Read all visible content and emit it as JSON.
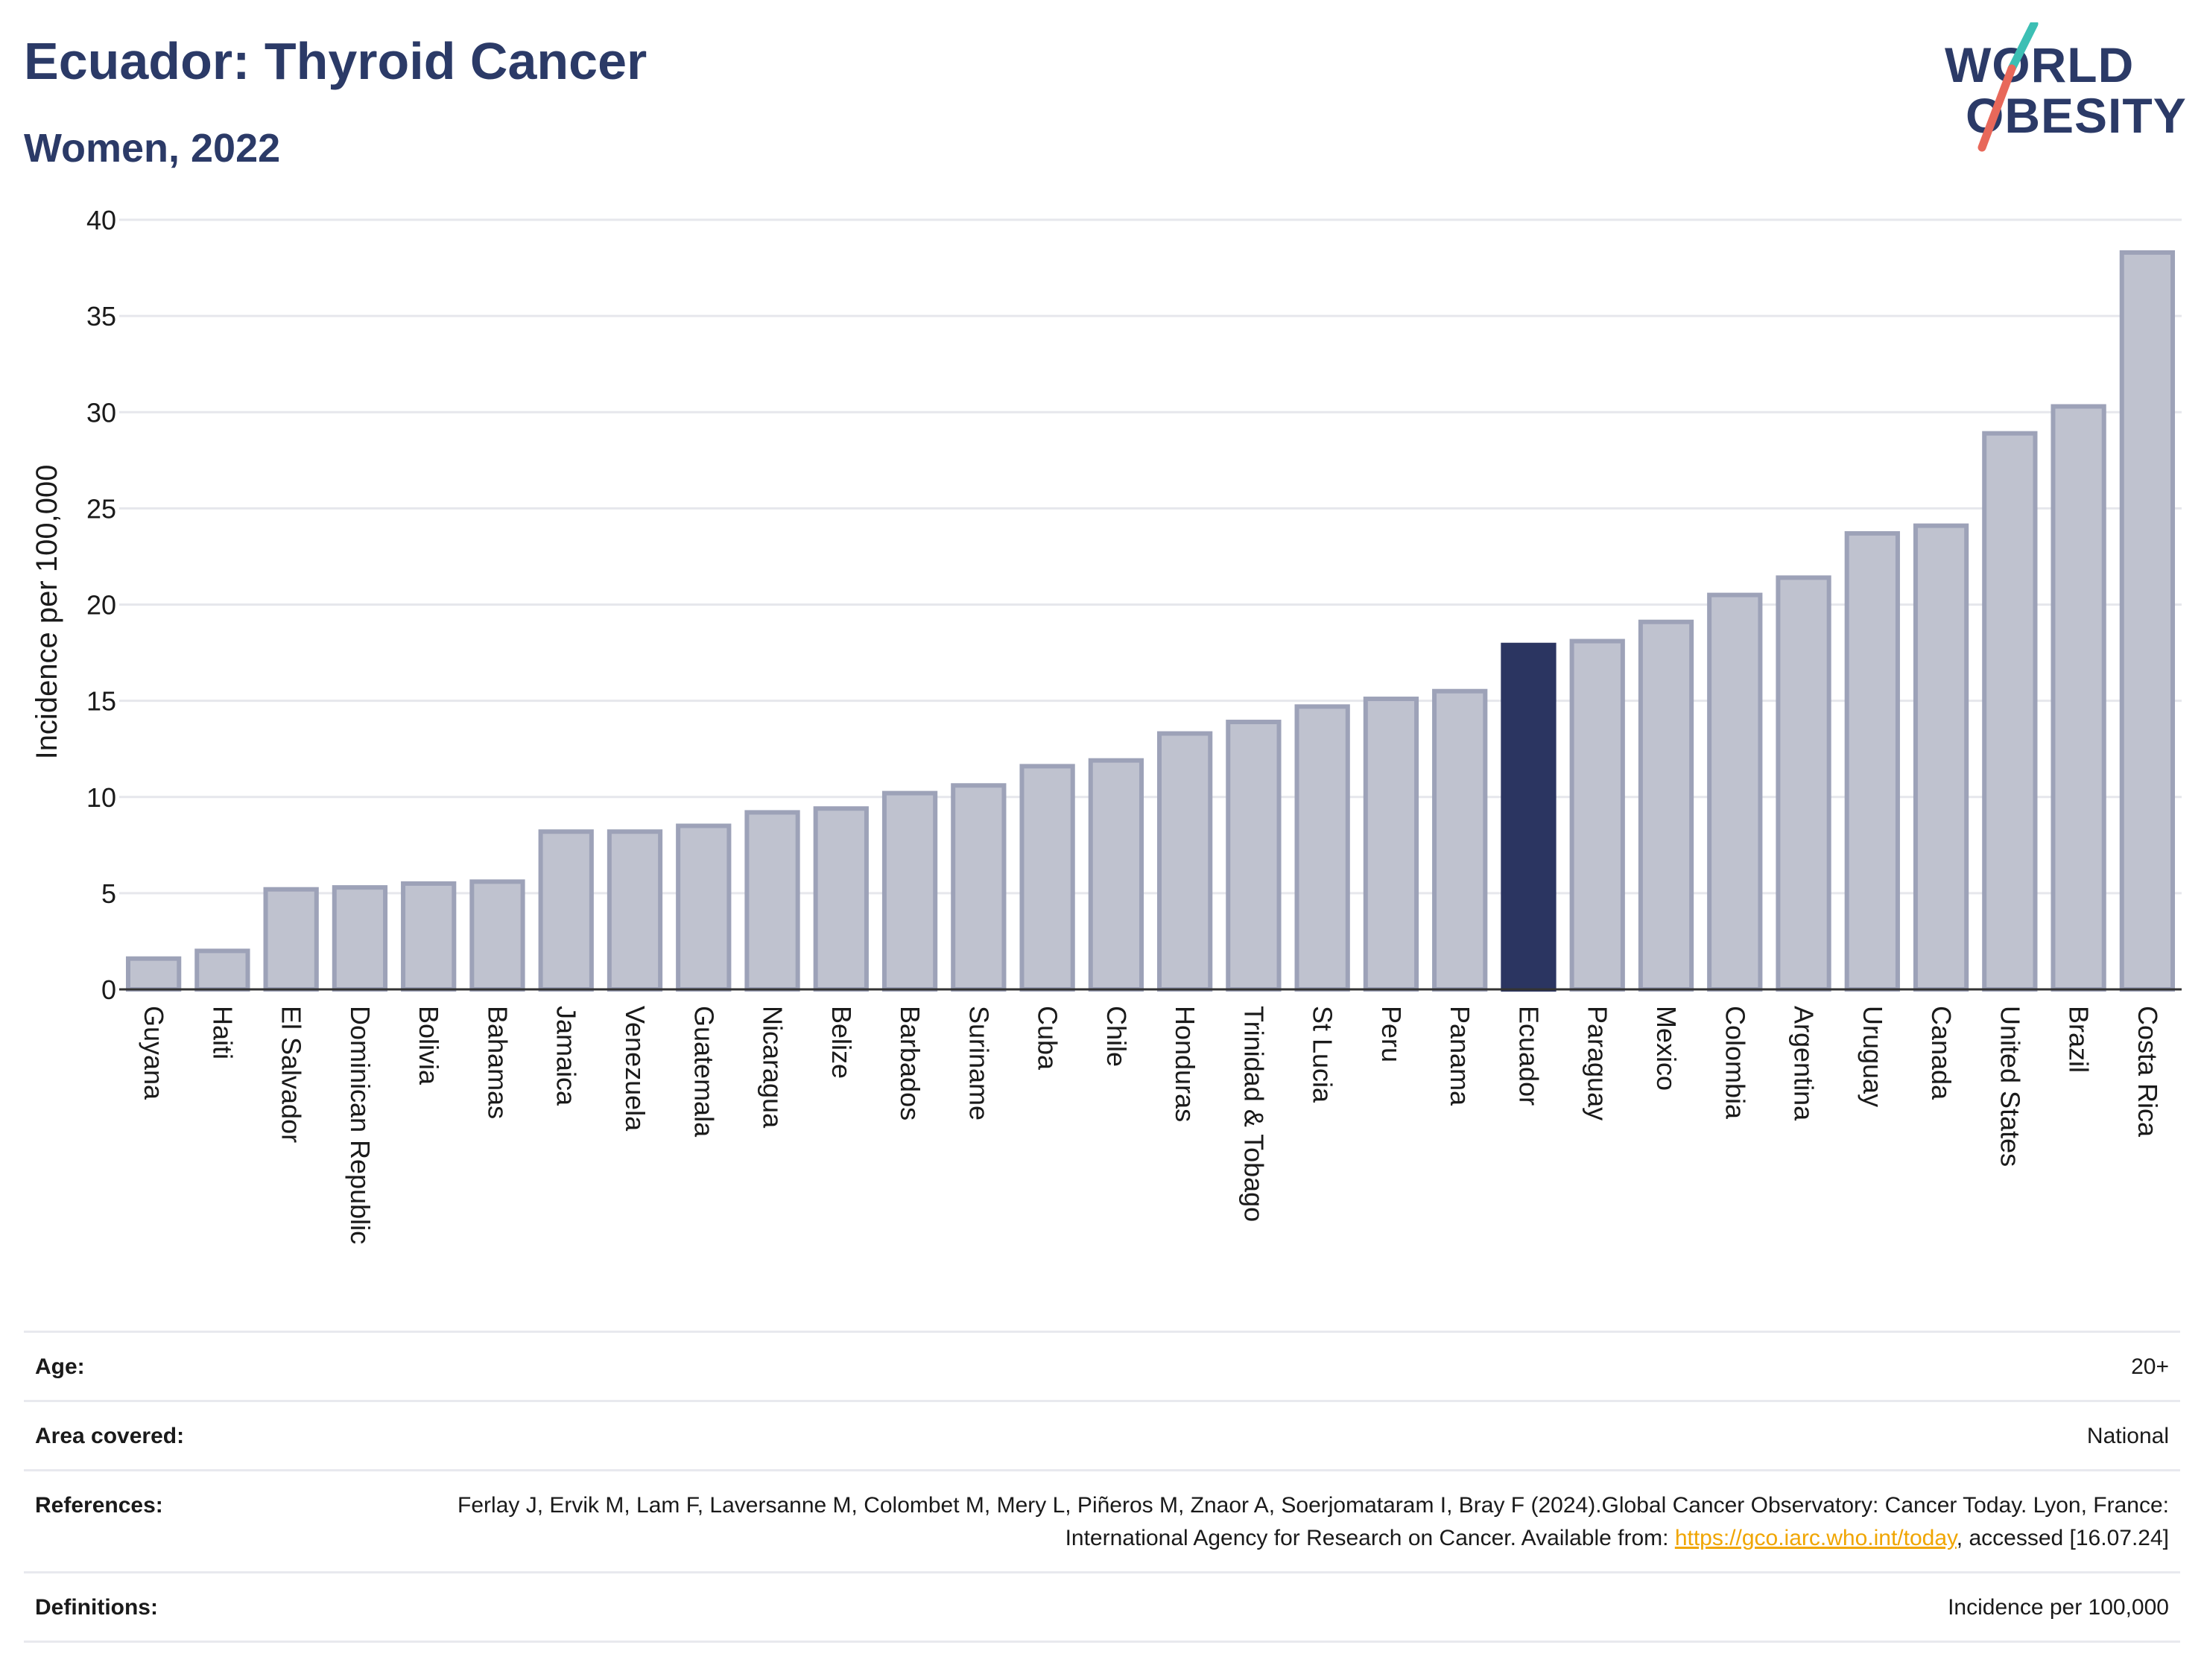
{
  "header": {
    "title": "Ecuador: Thyroid Cancer",
    "subtitle": "Women, 2022"
  },
  "logo": {
    "line1": "WORLD",
    "line2": "OBESITY",
    "color": "#2b3a67",
    "slash_colors": [
      "#3cbfb4",
      "#e8685a"
    ]
  },
  "chart_data": {
    "type": "bar",
    "ylabel": "Incidence per 100,000",
    "xlabel": "",
    "ylim": [
      0,
      40
    ],
    "yticks": [
      0,
      5,
      10,
      15,
      20,
      25,
      30,
      35,
      40
    ],
    "grid": true,
    "highlight": "Ecuador",
    "colors": {
      "bar": "#bfc2cf",
      "bar_border": "#9da2b8",
      "highlight": "#2b3561",
      "grid": "#e6e7ec"
    },
    "categories": [
      "Guyana",
      "Haiti",
      "El Salvador",
      "Dominican Republic",
      "Bolivia",
      "Bahamas",
      "Jamaica",
      "Venezuela",
      "Guatemala",
      "Nicaragua",
      "Belize",
      "Barbados",
      "Suriname",
      "Cuba",
      "Chile",
      "Honduras",
      "Trinidad & Tobago",
      "St Lucia",
      "Peru",
      "Panama",
      "Ecuador",
      "Paraguay",
      "Mexico",
      "Colombia",
      "Argentina",
      "Uruguay",
      "Canada",
      "United States",
      "Brazil",
      "Costa Rica"
    ],
    "values": [
      1.6,
      2.0,
      5.2,
      5.3,
      5.5,
      5.6,
      8.2,
      8.2,
      8.5,
      9.2,
      9.4,
      10.2,
      10.6,
      11.6,
      11.9,
      13.3,
      13.9,
      14.7,
      15.1,
      15.5,
      17.9,
      18.1,
      19.1,
      20.5,
      21.4,
      23.7,
      24.1,
      28.9,
      30.3,
      38.3
    ]
  },
  "meta": [
    {
      "label": "Age:",
      "value": "20+"
    },
    {
      "label": "Area covered:",
      "value": "National"
    },
    {
      "label": "References:",
      "value_before": "Ferlay J, Ervik M, Lam F, Laversanne M, Colombet M, Mery L, Piñeros M, Znaor A, Soerjomataram I, Bray F (2024).Global Cancer Observatory: Cancer Today. Lyon, France: International Agency for Research on Cancer. Available from: ",
      "link": "https://gco.iarc.who.int/today",
      "value_after": ", accessed [16.07.24]"
    },
    {
      "label": "Definitions:",
      "value": "Incidence per 100,000"
    }
  ]
}
